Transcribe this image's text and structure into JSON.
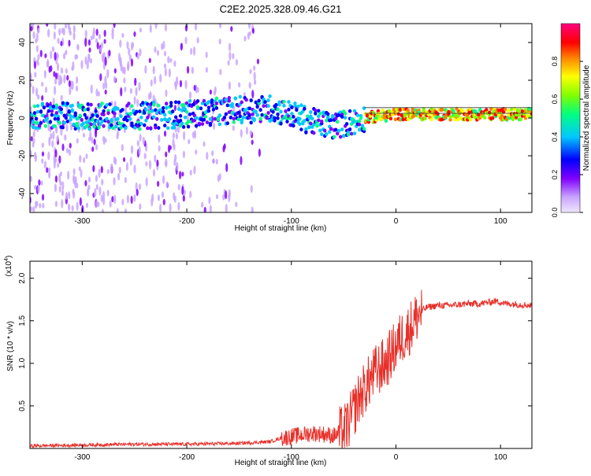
{
  "figure_title": "C2E2.2025.328.09.46.G21",
  "colorbar": {
    "label": "Normalized spectral amplitude",
    "ticks": [
      0.0,
      0.2,
      0.4,
      0.6,
      0.8
    ],
    "tick_labels": [
      "0.0",
      "0.2",
      "0.4",
      "0.6",
      "0.8"
    ],
    "range": [
      0,
      1
    ],
    "colors": [
      "#f0e6ff",
      "#c9a6ff",
      "#8000ff",
      "#0000ff",
      "#00c8ff",
      "#00ff80",
      "#80ff00",
      "#ffff00",
      "#ff8000",
      "#ff0000",
      "#ff0080"
    ]
  },
  "chart_data": [
    {
      "type": "heatmap",
      "title": "C2E2.2025.328.09.46.G21",
      "xlabel": "Height of straight line (km)",
      "ylabel": "Frequency (Hz)",
      "xlim": [
        -350,
        130
      ],
      "ylim": [
        -50,
        50
      ],
      "x_ticks": [
        -300,
        -200,
        -100,
        0,
        100
      ],
      "x_tick_labels": [
        "-300",
        "-200",
        "-100",
        "0",
        "100"
      ],
      "y_ticks": [
        -40,
        -20,
        0,
        20,
        40
      ],
      "y_tick_labels": [
        "-40",
        "-20",
        "0",
        "20",
        "40"
      ],
      "ridge_center_hz": [
        {
          "x": -350,
          "y": 1
        },
        {
          "x": -300,
          "y": 1
        },
        {
          "x": -250,
          "y": 1
        },
        {
          "x": -200,
          "y": 2
        },
        {
          "x": -160,
          "y": 4
        },
        {
          "x": -120,
          "y": 5
        },
        {
          "x": -100,
          "y": 2
        },
        {
          "x": -80,
          "y": -2
        },
        {
          "x": -60,
          "y": -4
        },
        {
          "x": -40,
          "y": -2
        },
        {
          "x": -30,
          "y": 0
        },
        {
          "x": 0,
          "y": 2
        },
        {
          "x": 50,
          "y": 2
        },
        {
          "x": 100,
          "y": 2
        },
        {
          "x": 130,
          "y": 2
        }
      ],
      "scatter_extent_x": [
        -350,
        -130
      ],
      "colorbar_label": "Normalized spectral amplitude"
    },
    {
      "type": "line",
      "xlabel": "Height of straight line (km)",
      "ylabel": "SNR (10 * v/v)",
      "y_multiplier_label": "(x10",
      "y_multiplier_exp": "4",
      "y_multiplier_close": ")",
      "xlim": [
        -350,
        130
      ],
      "ylim": [
        0,
        2.2
      ],
      "x_ticks": [
        -300,
        -200,
        -100,
        0,
        100
      ],
      "x_tick_labels": [
        "-300",
        "-200",
        "-100",
        "0",
        "100"
      ],
      "y_ticks": [
        0.5,
        1.0,
        1.5,
        2.0
      ],
      "y_tick_labels": [
        "0.5",
        "1.0",
        "1.5",
        "2.0"
      ],
      "series": [
        {
          "name": "SNR",
          "color": "#e8302a",
          "x": [
            -350,
            -300,
            -250,
            -200,
            -150,
            -120,
            -110,
            -100,
            -90,
            -80,
            -70,
            -60,
            -50,
            -45,
            -40,
            -35,
            -30,
            -25,
            -20,
            -15,
            -10,
            -5,
            0,
            5,
            10,
            15,
            20,
            25,
            30,
            40,
            50,
            60,
            70,
            80,
            90,
            95,
            100,
            105,
            110,
            120,
            130
          ],
          "values": [
            0.03,
            0.04,
            0.05,
            0.05,
            0.06,
            0.08,
            0.12,
            0.14,
            0.16,
            0.18,
            0.17,
            0.15,
            0.2,
            0.3,
            0.45,
            0.6,
            0.7,
            0.8,
            0.9,
            0.95,
            1.0,
            1.1,
            1.2,
            1.3,
            1.35,
            1.45,
            1.55,
            1.62,
            1.66,
            1.68,
            1.68,
            1.69,
            1.7,
            1.7,
            1.72,
            1.73,
            1.72,
            1.7,
            1.7,
            1.69,
            1.68
          ]
        }
      ]
    }
  ]
}
